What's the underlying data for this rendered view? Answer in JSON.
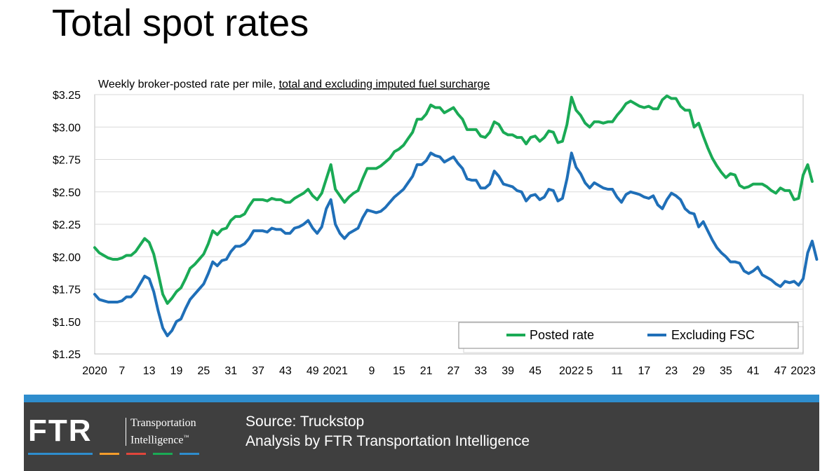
{
  "title": "Total spot rates",
  "colors": {
    "posted": "#1aaa55",
    "excluding": "#1f6fb8",
    "footer_bg": "#3f3f3f",
    "footer_stripe": "#2e8dcd",
    "logo_bars": [
      "#2e8dcd",
      "#f39c2b",
      "#e0463b",
      "#1aaa55",
      "#2e8dcd"
    ]
  },
  "footer": {
    "logo_letters": "FTR",
    "logo_line1": "Transportation",
    "logo_line2": "Intelligence",
    "logo_tm": "™",
    "source": "Source: Truckstop",
    "analysis": "Analysis by FTR Transportation Intelligence"
  },
  "chart_data": {
    "type": "line",
    "subtitle_plain": "Weekly broker-posted rate per mile, ",
    "subtitle_underlined": "total and excluding imputed fuel surcharge",
    "y_ticks": [
      "$1.25",
      "$1.50",
      "$1.75",
      "$2.00",
      "$2.25",
      "$2.50",
      "$2.75",
      "$3.00",
      "$3.25"
    ],
    "ylim": [
      1.25,
      3.25
    ],
    "x_ticks": [
      {
        "label": "2020",
        "week": 1
      },
      {
        "label": "7",
        "week": 7
      },
      {
        "label": "13",
        "week": 13
      },
      {
        "label": "19",
        "week": 19
      },
      {
        "label": "25",
        "week": 25
      },
      {
        "label": "31",
        "week": 31
      },
      {
        "label": "37",
        "week": 37
      },
      {
        "label": "43",
        "week": 43
      },
      {
        "label": "49",
        "week": 49
      },
      {
        "label": "2021",
        "week": 54
      },
      {
        "label": "9",
        "week": 62
      },
      {
        "label": "15",
        "week": 68
      },
      {
        "label": "21",
        "week": 74
      },
      {
        "label": "27",
        "week": 80
      },
      {
        "label": "33",
        "week": 86
      },
      {
        "label": "39",
        "week": 92
      },
      {
        "label": "45",
        "week": 98
      },
      {
        "label": "2022",
        "week": 106
      },
      {
        "label": "5",
        "week": 110
      },
      {
        "label": "11",
        "week": 116
      },
      {
        "label": "17",
        "week": 122
      },
      {
        "label": "23",
        "week": 128
      },
      {
        "label": "29",
        "week": 134
      },
      {
        "label": "35",
        "week": 140
      },
      {
        "label": "41",
        "week": 146
      },
      {
        "label": "47",
        "week": 152
      },
      {
        "label": "2023",
        "week": 157
      }
    ],
    "xlim": [
      1,
      157
    ],
    "legend_position": "bottom-right",
    "grid": true,
    "series": [
      {
        "name": "Posted rate",
        "values": [
          2.07,
          2.03,
          2.01,
          1.99,
          1.98,
          1.98,
          1.99,
          2.01,
          2.01,
          2.04,
          2.09,
          2.14,
          2.11,
          2.02,
          1.87,
          1.71,
          1.64,
          1.68,
          1.73,
          1.76,
          1.83,
          1.91,
          1.94,
          1.98,
          2.02,
          2.1,
          2.2,
          2.17,
          2.21,
          2.22,
          2.28,
          2.31,
          2.31,
          2.33,
          2.39,
          2.44,
          2.44,
          2.44,
          2.43,
          2.45,
          2.44,
          2.44,
          2.42,
          2.42,
          2.45,
          2.47,
          2.49,
          2.52,
          2.47,
          2.44,
          2.49,
          2.6,
          2.71,
          2.52,
          2.47,
          2.42,
          2.46,
          2.49,
          2.51,
          2.6,
          2.68,
          2.68,
          2.68,
          2.7,
          2.73,
          2.76,
          2.81,
          2.83,
          2.86,
          2.91,
          2.96,
          3.06,
          3.06,
          3.1,
          3.17,
          3.15,
          3.15,
          3.11,
          3.13,
          3.15,
          3.1,
          3.06,
          2.98,
          2.98,
          2.98,
          2.93,
          2.92,
          2.96,
          3.04,
          3.02,
          2.96,
          2.94,
          2.94,
          2.92,
          2.92,
          2.87,
          2.92,
          2.93,
          2.89,
          2.92,
          2.97,
          2.96,
          2.88,
          2.89,
          3.02,
          3.23,
          3.13,
          3.09,
          3.03,
          3.0,
          3.04,
          3.04,
          3.03,
          3.04,
          3.04,
          3.09,
          3.13,
          3.18,
          3.2,
          3.18,
          3.16,
          3.15,
          3.16,
          3.14,
          3.14,
          3.21,
          3.24,
          3.22,
          3.22,
          3.16,
          3.13,
          3.13,
          3.0,
          3.03,
          2.93,
          2.84,
          2.76,
          2.7,
          2.65,
          2.61,
          2.64,
          2.63,
          2.55,
          2.53,
          2.54,
          2.56,
          2.56,
          2.56,
          2.54,
          2.51,
          2.49,
          2.53,
          2.51,
          2.51,
          2.44,
          2.45,
          2.63,
          2.71,
          2.58
        ]
      },
      {
        "name": "Excluding FSC",
        "values": [
          1.71,
          1.67,
          1.66,
          1.65,
          1.65,
          1.65,
          1.66,
          1.69,
          1.69,
          1.73,
          1.79,
          1.85,
          1.83,
          1.73,
          1.58,
          1.45,
          1.39,
          1.43,
          1.5,
          1.52,
          1.6,
          1.67,
          1.71,
          1.75,
          1.79,
          1.87,
          1.96,
          1.93,
          1.97,
          1.98,
          2.04,
          2.08,
          2.08,
          2.1,
          2.14,
          2.2,
          2.2,
          2.2,
          2.19,
          2.22,
          2.21,
          2.21,
          2.18,
          2.18,
          2.22,
          2.23,
          2.25,
          2.28,
          2.22,
          2.18,
          2.23,
          2.37,
          2.44,
          2.25,
          2.18,
          2.14,
          2.18,
          2.2,
          2.22,
          2.3,
          2.36,
          2.35,
          2.34,
          2.35,
          2.38,
          2.42,
          2.46,
          2.49,
          2.52,
          2.57,
          2.62,
          2.71,
          2.71,
          2.74,
          2.8,
          2.78,
          2.77,
          2.73,
          2.75,
          2.77,
          2.72,
          2.68,
          2.6,
          2.59,
          2.59,
          2.53,
          2.53,
          2.56,
          2.66,
          2.62,
          2.56,
          2.55,
          2.54,
          2.51,
          2.5,
          2.43,
          2.47,
          2.48,
          2.44,
          2.46,
          2.52,
          2.51,
          2.43,
          2.45,
          2.6,
          2.8,
          2.69,
          2.64,
          2.57,
          2.53,
          2.57,
          2.55,
          2.53,
          2.52,
          2.52,
          2.46,
          2.42,
          2.48,
          2.5,
          2.49,
          2.48,
          2.46,
          2.45,
          2.47,
          2.4,
          2.37,
          2.44,
          2.49,
          2.47,
          2.44,
          2.37,
          2.34,
          2.33,
          2.23,
          2.27,
          2.2,
          2.13,
          2.07,
          2.03,
          2.0,
          1.96,
          1.96,
          1.95,
          1.89,
          1.87,
          1.89,
          1.92,
          1.86,
          1.84,
          1.82,
          1.79,
          1.77,
          1.81,
          1.8,
          1.81,
          1.78,
          1.83,
          2.03,
          2.12,
          1.98
        ]
      }
    ]
  }
}
